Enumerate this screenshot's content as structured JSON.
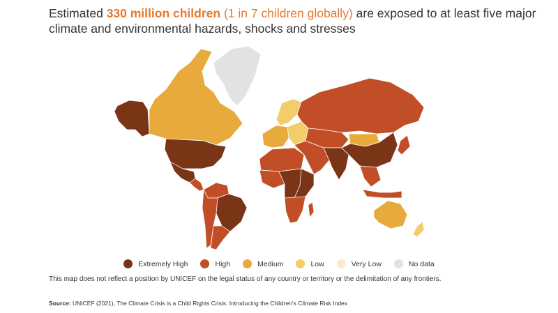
{
  "title": {
    "part1": "Estimated ",
    "highlight_strong": "330 million children",
    "part2": " ",
    "highlight": "(1 in 7 children globally)",
    "part3": " are exposed to at least five major climate and environmental hazards, shocks and stresses"
  },
  "legend": [
    {
      "label": "Extremely High",
      "color": "#7a3416"
    },
    {
      "label": "High",
      "color": "#c14e27"
    },
    {
      "label": "Medium",
      "color": "#e9aa3d"
    },
    {
      "label": "Low",
      "color": "#f3cd6c"
    },
    {
      "label": "Very Low",
      "color": "#faeccb"
    },
    {
      "label": "No data",
      "color": "#e2e2e2"
    }
  ],
  "map": {
    "regions": [
      {
        "name": "alaska",
        "level": "Extremely High"
      },
      {
        "name": "canada",
        "level": "Medium"
      },
      {
        "name": "greenland",
        "level": "No data"
      },
      {
        "name": "united-states",
        "level": "Extremely High"
      },
      {
        "name": "mexico",
        "level": "Extremely High"
      },
      {
        "name": "central-america",
        "level": "High"
      },
      {
        "name": "northern-south-america",
        "level": "High"
      },
      {
        "name": "brazil",
        "level": "Extremely High"
      },
      {
        "name": "western-south-america",
        "level": "High"
      },
      {
        "name": "argentina",
        "level": "High"
      },
      {
        "name": "scandinavia",
        "level": "Low"
      },
      {
        "name": "western-europe",
        "level": "Medium"
      },
      {
        "name": "eastern-europe",
        "level": "Low"
      },
      {
        "name": "russia",
        "level": "High"
      },
      {
        "name": "north-africa",
        "level": "High"
      },
      {
        "name": "west-africa",
        "level": "High"
      },
      {
        "name": "central-africa",
        "level": "Extremely High"
      },
      {
        "name": "east-africa",
        "level": "Extremely High"
      },
      {
        "name": "southern-africa",
        "level": "High"
      },
      {
        "name": "madagascar",
        "level": "High"
      },
      {
        "name": "middle-east",
        "level": "High"
      },
      {
        "name": "central-asia",
        "level": "High"
      },
      {
        "name": "mongolia",
        "level": "Medium"
      },
      {
        "name": "south-asia",
        "level": "Extremely High"
      },
      {
        "name": "china",
        "level": "Extremely High"
      },
      {
        "name": "southeast-asia",
        "level": "High"
      },
      {
        "name": "japan",
        "level": "High"
      },
      {
        "name": "indonesia",
        "level": "High"
      },
      {
        "name": "australia",
        "level": "Medium"
      },
      {
        "name": "new-zealand",
        "level": "Low"
      }
    ]
  },
  "disclaimer": "This map does not reflect a position by UNICEF on the legal status of any country or territory or the delimitation of any frontiers.",
  "source": {
    "label": "Source:",
    "text": " UNICEF (2021), The Climate Crisis is a Child Rights Crisis: Introducing the Children's Climate Risk Index"
  }
}
